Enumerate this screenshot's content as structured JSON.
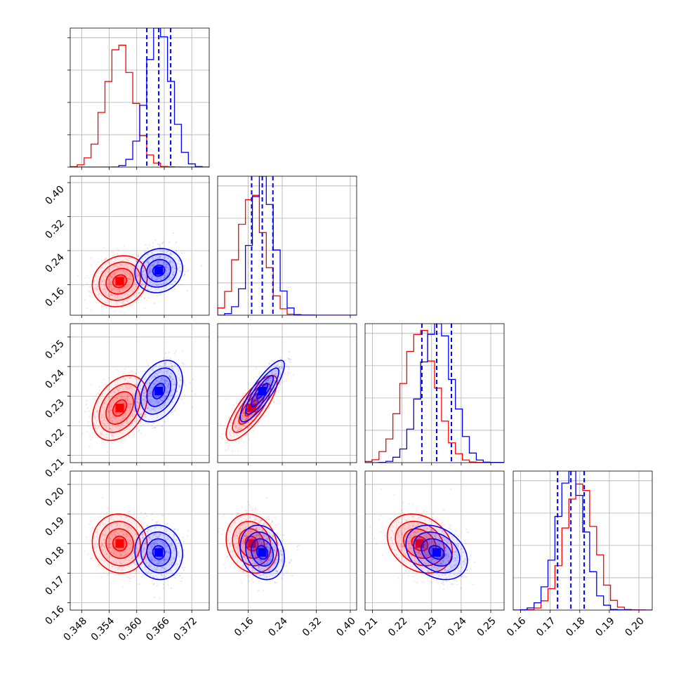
{
  "chart_data": {
    "type": "corner",
    "grid": true,
    "colors": {
      "red": "#ff0000",
      "blue": "#0000ff"
    },
    "series": [
      {
        "name": "",
        "color": "#ff0000",
        "means": [
          0.3563,
          0.168,
          0.226,
          0.18
        ],
        "sigmas": [
          0.003,
          0.03,
          0.0055,
          0.005
        ],
        "corr": {
          "1_0": 0.15,
          "2_0": 0.35,
          "2_1": 0.8,
          "3_0": -0.05,
          "3_1": -0.15,
          "3_2": -0.25
        },
        "quantile_lines": false
      },
      {
        "name": "",
        "color": "#0000ff",
        "means": [
          0.3648,
          0.193,
          0.2317,
          0.177
        ],
        "sigmas": [
          0.0026,
          0.026,
          0.0052,
          0.0046
        ],
        "corr": {
          "1_0": 0.1,
          "2_0": 0.35,
          "2_1": 0.85,
          "3_0": -0.05,
          "3_1": -0.2,
          "3_2": -0.3
        },
        "quantile_lines": true,
        "quantiles": [
          [
            0.3622,
            0.3648,
            0.3674
          ],
          [
            0.168,
            0.193,
            0.218
          ],
          [
            0.2267,
            0.2317,
            0.2367
          ],
          [
            0.1725,
            0.177,
            0.1815
          ]
        ]
      }
    ],
    "params": [
      {
        "range": [
          0.3455,
          0.3758
        ],
        "ticks": [
          "0.348",
          "0.354",
          "0.360",
          "0.366",
          "0.372"
        ]
      },
      {
        "range": [
          0.088,
          0.415
        ],
        "ticks": [
          "0.16",
          "0.24",
          "0.32",
          "0.40"
        ]
      },
      {
        "range": [
          0.2075,
          0.2545
        ],
        "ticks": [
          "0.21",
          "0.22",
          "0.23",
          "0.24",
          "0.25"
        ]
      },
      {
        "range": [
          0.1575,
          0.2045
        ],
        "ticks": [
          "0.16",
          "0.17",
          "0.18",
          "0.19",
          "0.20"
        ]
      }
    ]
  }
}
